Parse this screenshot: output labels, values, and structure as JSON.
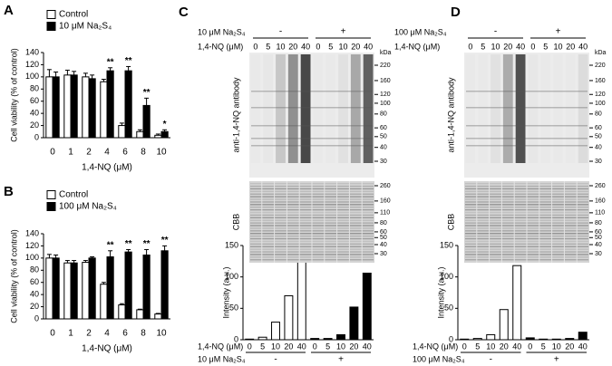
{
  "chart_data": [
    {
      "type": "bar",
      "panel": "A",
      "ylabel": "Cell viability (% of control)",
      "xlabel": "1,4-NQ (μM)",
      "categories": [
        "0",
        "1",
        "2",
        "4",
        "6",
        "8",
        "10"
      ],
      "series": [
        {
          "name": "Control",
          "color": "#ffffff",
          "values": [
            100,
            103,
            100,
            92,
            20,
            10,
            4
          ],
          "errors": [
            12,
            8,
            6,
            4,
            4,
            3,
            2
          ]
        },
        {
          "name": "10 μM Na₂S₄",
          "color": "#000000",
          "values": [
            100,
            103,
            97,
            110,
            110,
            53,
            10
          ],
          "errors": [
            8,
            6,
            6,
            5,
            7,
            12,
            3
          ]
        }
      ],
      "significance": [
        null,
        null,
        null,
        "**",
        "**",
        "**",
        "*"
      ],
      "ylim": [
        0,
        140
      ],
      "yticks": [
        0,
        20,
        40,
        60,
        80,
        100,
        120,
        140
      ]
    },
    {
      "type": "bar",
      "panel": "B",
      "ylabel": "Cell viability (% of control)",
      "xlabel": "1,4-NQ (μM)",
      "categories": [
        "0",
        "1",
        "2",
        "4",
        "6",
        "8",
        "10"
      ],
      "series": [
        {
          "name": "Control",
          "color": "#ffffff",
          "values": [
            100,
            92,
            93,
            57,
            23,
            15,
            8
          ],
          "errors": [
            6,
            4,
            3,
            3,
            2,
            1,
            1
          ]
        },
        {
          "name": "100 μM Na₂S₄",
          "color": "#000000",
          "values": [
            100,
            92,
            100,
            102,
            110,
            105,
            112
          ],
          "errors": [
            5,
            4,
            2,
            10,
            4,
            9,
            8
          ]
        }
      ],
      "significance": [
        null,
        null,
        null,
        "**",
        "**",
        "**",
        "**"
      ],
      "ylim": [
        0,
        140
      ],
      "yticks": [
        0,
        20,
        40,
        60,
        80,
        100,
        120,
        140
      ]
    },
    {
      "type": "bar",
      "panel": "C",
      "ylabel": "Intensity (a.u.)",
      "xlabel": "1,4-NQ (μM)",
      "categories": [
        "0",
        "5",
        "10",
        "20",
        "40",
        "0",
        "5",
        "10",
        "20",
        "40"
      ],
      "values": [
        1,
        4,
        28,
        70,
        125,
        2,
        2,
        8,
        52,
        106
      ],
      "colors": [
        "#ffffff",
        "#ffffff",
        "#ffffff",
        "#ffffff",
        "#ffffff",
        "#000000",
        "#000000",
        "#000000",
        "#000000",
        "#000000"
      ],
      "group_label": "10 μM Na₂S₄",
      "groups": [
        "-",
        "+"
      ],
      "ylim": [
        0,
        150
      ],
      "yticks": [
        0,
        50,
        100,
        150
      ]
    },
    {
      "type": "bar",
      "panel": "D",
      "ylabel": "Intensity (a.u.)",
      "xlabel": "1,4-NQ (μM)",
      "categories": [
        "0",
        "5",
        "10",
        "20",
        "40",
        "0",
        "5",
        "10",
        "20",
        "40"
      ],
      "values": [
        1,
        2,
        8,
        48,
        118,
        3,
        1,
        1,
        2,
        12
      ],
      "colors": [
        "#ffffff",
        "#ffffff",
        "#ffffff",
        "#ffffff",
        "#ffffff",
        "#000000",
        "#000000",
        "#000000",
        "#000000",
        "#000000"
      ],
      "group_label": "100 μM Na₂S₄",
      "groups": [
        "-",
        "+"
      ],
      "ylim": [
        0,
        150
      ],
      "yticks": [
        0,
        50,
        100,
        150
      ]
    }
  ],
  "blots": [
    {
      "treatment": "10 μM Na₂S₄",
      "groups": [
        "-",
        "+"
      ],
      "dose_label": "1,4-NQ (μM)",
      "lanes": [
        "0",
        "5",
        "10",
        "20",
        "40",
        "0",
        "5",
        "10",
        "20",
        "40"
      ],
      "antibody": "anti-1,4-NQ antibody",
      "stain": "CBB",
      "unit": "kDa",
      "markers_upper": [
        220,
        160,
        120,
        100,
        80,
        60,
        50,
        40,
        30
      ],
      "markers_cbb": [
        260,
        160,
        110,
        80,
        60,
        50,
        40,
        30
      ]
    },
    {
      "treatment": "100 μM Na₂S₄",
      "groups": [
        "-",
        "+"
      ],
      "dose_label": "1,4-NQ (μM)",
      "lanes": [
        "0",
        "5",
        "10",
        "20",
        "40",
        "0",
        "5",
        "10",
        "20",
        "40"
      ],
      "antibody": "anti-1,4-NQ antibody",
      "stain": "CBB",
      "unit": "kDa",
      "markers_upper": [
        220,
        160,
        120,
        100,
        80,
        60,
        50,
        40,
        30
      ],
      "markers_cbb": [
        260,
        160,
        110,
        80,
        60,
        50,
        40,
        30
      ]
    }
  ]
}
